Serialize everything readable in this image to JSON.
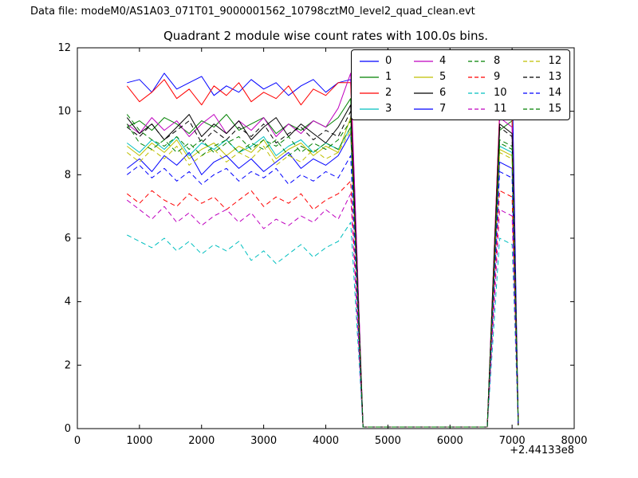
{
  "header": {
    "data_file_label": "Data file: modeM0/AS1A03_071T01_9000001562_10798cztM0_level2_quad_clean.evt"
  },
  "chart_data": {
    "type": "line",
    "title": "Quadrant 2 module wise count rates with 100.0s bins.",
    "xlabel": "",
    "ylabel": "",
    "x_offset_label": "+2.44133e8",
    "xlim": [
      0,
      8000
    ],
    "ylim": [
      0,
      12
    ],
    "x_ticks": [
      0,
      1000,
      2000,
      3000,
      4000,
      5000,
      6000,
      7000,
      8000
    ],
    "y_ticks": [
      0,
      2,
      4,
      6,
      8,
      10,
      12
    ],
    "grid": false,
    "legend": {
      "position": "upper right",
      "columns": 4,
      "order": "column-major"
    },
    "x": [
      800,
      1000,
      1200,
      1400,
      1600,
      1800,
      2000,
      2200,
      2400,
      2600,
      2800,
      3000,
      3200,
      3400,
      3600,
      3800,
      4000,
      4200,
      4400,
      4600,
      4800,
      5000,
      5200,
      5400,
      5600,
      5800,
      6000,
      6200,
      6400,
      6600,
      6800,
      7000,
      7100
    ],
    "series": [
      {
        "name": "0",
        "color": "#0000ff",
        "dash": false,
        "values": [
          10.9,
          11.0,
          10.6,
          11.2,
          10.7,
          10.9,
          11.1,
          10.5,
          10.8,
          10.6,
          11.0,
          10.7,
          10.9,
          10.5,
          10.8,
          11.0,
          10.6,
          10.9,
          11.0,
          0.05,
          0.05,
          0.05,
          0.05,
          0.05,
          0.05,
          0.05,
          0.05,
          0.05,
          0.05,
          0.05,
          9.9,
          11.3,
          0.1
        ]
      },
      {
        "name": "1",
        "color": "#008000",
        "dash": false,
        "values": [
          9.5,
          9.7,
          9.4,
          9.8,
          9.6,
          9.3,
          9.7,
          9.5,
          9.9,
          9.4,
          9.6,
          9.8,
          9.3,
          9.6,
          9.4,
          9.7,
          9.5,
          9.8,
          10.4,
          0.05,
          0.05,
          0.05,
          0.05,
          0.05,
          0.05,
          0.05,
          0.05,
          0.05,
          0.05,
          0.05,
          9.4,
          9.7,
          0.1
        ]
      },
      {
        "name": "2",
        "color": "#ff0000",
        "dash": false,
        "values": [
          10.8,
          10.3,
          10.6,
          11.0,
          10.4,
          10.7,
          10.2,
          10.8,
          10.5,
          10.9,
          10.3,
          10.6,
          10.4,
          10.8,
          10.2,
          10.7,
          10.5,
          10.9,
          10.9,
          0.05,
          0.05,
          0.05,
          0.05,
          0.05,
          0.05,
          0.05,
          0.05,
          0.05,
          0.05,
          0.05,
          10.0,
          9.8,
          0.1
        ]
      },
      {
        "name": "3",
        "color": "#00bfbf",
        "dash": false,
        "values": [
          9.0,
          8.7,
          9.1,
          8.8,
          9.2,
          8.6,
          9.0,
          8.8,
          9.1,
          8.7,
          8.9,
          9.2,
          8.6,
          8.9,
          9.1,
          8.7,
          9.0,
          8.8,
          9.5,
          0.05,
          0.05,
          0.05,
          0.05,
          0.05,
          0.05,
          0.05,
          0.05,
          0.05,
          0.05,
          0.05,
          8.9,
          8.7,
          0.1
        ]
      },
      {
        "name": "4",
        "color": "#bf00bf",
        "dash": false,
        "values": [
          9.6,
          9.3,
          9.8,
          9.4,
          9.7,
          9.2,
          9.6,
          9.9,
          9.3,
          9.7,
          9.4,
          9.8,
          9.2,
          9.6,
          9.3,
          9.7,
          9.5,
          10.1,
          11.2,
          0.05,
          0.05,
          0.05,
          0.05,
          0.05,
          0.05,
          0.05,
          0.05,
          0.05,
          0.05,
          0.05,
          9.8,
          9.5,
          0.1
        ]
      },
      {
        "name": "5",
        "color": "#bfbf00",
        "dash": false,
        "values": [
          8.9,
          8.6,
          9.0,
          8.7,
          9.1,
          8.5,
          8.8,
          9.0,
          8.6,
          8.9,
          8.7,
          9.1,
          8.5,
          8.8,
          9.0,
          8.6,
          8.9,
          8.7,
          9.8,
          0.05,
          0.05,
          0.05,
          0.05,
          0.05,
          0.05,
          0.05,
          0.05,
          0.05,
          0.05,
          0.05,
          8.8,
          8.6,
          0.1
        ]
      },
      {
        "name": "6",
        "color": "#000000",
        "dash": false,
        "values": [
          9.8,
          9.3,
          9.6,
          9.1,
          9.5,
          9.9,
          9.2,
          9.6,
          9.3,
          9.7,
          9.1,
          9.5,
          9.8,
          9.2,
          9.6,
          9.3,
          9.0,
          9.5,
          10.2,
          0.05,
          0.05,
          0.05,
          0.05,
          0.05,
          0.05,
          0.05,
          0.05,
          0.05,
          0.05,
          0.05,
          9.6,
          9.3,
          0.1
        ]
      },
      {
        "name": "7",
        "color": "#0000ff",
        "dash": false,
        "values": [
          8.2,
          8.5,
          8.1,
          8.6,
          8.3,
          8.7,
          8.0,
          8.4,
          8.6,
          8.2,
          8.5,
          8.1,
          8.4,
          8.7,
          8.2,
          8.5,
          8.3,
          8.6,
          9.3,
          0.05,
          0.05,
          0.05,
          0.05,
          0.05,
          0.05,
          0.05,
          0.05,
          0.05,
          0.05,
          0.05,
          8.4,
          8.2,
          0.1
        ]
      },
      {
        "name": "8",
        "color": "#008000",
        "dash": true,
        "values": [
          9.9,
          9.4,
          9.1,
          8.9,
          9.2,
          8.8,
          9.1,
          8.7,
          9.0,
          9.2,
          8.8,
          9.1,
          8.9,
          9.2,
          8.7,
          9.0,
          8.8,
          9.1,
          9.7,
          0.05,
          0.05,
          0.05,
          0.05,
          0.05,
          0.05,
          0.05,
          0.05,
          0.05,
          0.05,
          0.05,
          9.1,
          8.9,
          0.1
        ]
      },
      {
        "name": "9",
        "color": "#ff0000",
        "dash": true,
        "values": [
          7.4,
          7.1,
          7.5,
          7.2,
          7.0,
          7.4,
          7.1,
          7.3,
          6.9,
          7.2,
          7.5,
          7.0,
          7.3,
          7.1,
          7.4,
          6.9,
          7.2,
          7.4,
          7.8,
          0.05,
          0.05,
          0.05,
          0.05,
          0.05,
          0.05,
          0.05,
          0.05,
          0.05,
          0.05,
          0.05,
          7.5,
          7.3,
          0.1
        ]
      },
      {
        "name": "10",
        "color": "#00bfbf",
        "dash": true,
        "values": [
          6.1,
          5.9,
          5.7,
          6.0,
          5.6,
          5.9,
          5.5,
          5.8,
          5.6,
          5.9,
          5.3,
          5.6,
          5.2,
          5.5,
          5.8,
          5.4,
          5.7,
          5.9,
          6.5,
          0.05,
          0.05,
          0.05,
          0.05,
          0.05,
          0.05,
          0.05,
          0.05,
          0.05,
          0.05,
          0.05,
          6.0,
          5.8,
          0.1
        ]
      },
      {
        "name": "11",
        "color": "#bf00bf",
        "dash": true,
        "values": [
          7.2,
          6.9,
          6.6,
          7.0,
          6.5,
          6.8,
          6.4,
          6.7,
          6.9,
          6.5,
          6.8,
          6.3,
          6.6,
          6.4,
          6.7,
          6.5,
          6.9,
          6.6,
          7.4,
          0.05,
          0.05,
          0.05,
          0.05,
          0.05,
          0.05,
          0.05,
          0.05,
          0.05,
          0.05,
          0.05,
          6.9,
          6.7,
          0.1
        ]
      },
      {
        "name": "12",
        "color": "#bfbf00",
        "dash": true,
        "values": [
          8.7,
          8.4,
          8.8,
          8.5,
          8.9,
          8.3,
          8.6,
          8.8,
          8.4,
          8.7,
          8.5,
          8.9,
          8.3,
          8.6,
          8.4,
          8.8,
          8.5,
          8.7,
          9.4,
          0.05,
          0.05,
          0.05,
          0.05,
          0.05,
          0.05,
          0.05,
          0.05,
          0.05,
          0.05,
          0.05,
          8.7,
          8.5,
          0.1
        ]
      },
      {
        "name": "13",
        "color": "#000000",
        "dash": true,
        "values": [
          9.5,
          9.2,
          9.6,
          9.1,
          9.4,
          9.7,
          9.0,
          9.4,
          9.1,
          9.5,
          9.2,
          9.6,
          9.0,
          9.3,
          9.5,
          9.1,
          9.4,
          9.2,
          10.0,
          0.05,
          0.05,
          0.05,
          0.05,
          0.05,
          0.05,
          0.05,
          0.05,
          0.05,
          0.05,
          0.05,
          9.5,
          9.2,
          0.1
        ]
      },
      {
        "name": "14",
        "color": "#0000ff",
        "dash": true,
        "values": [
          8.0,
          8.3,
          7.9,
          8.2,
          7.8,
          8.1,
          7.7,
          8.0,
          8.2,
          7.8,
          8.1,
          7.9,
          8.2,
          7.7,
          8.0,
          7.8,
          8.1,
          7.9,
          8.6,
          0.05,
          0.05,
          0.05,
          0.05,
          0.05,
          0.05,
          0.05,
          0.05,
          0.05,
          0.05,
          0.05,
          8.1,
          7.9,
          0.1
        ]
      },
      {
        "name": "15",
        "color": "#008000",
        "dash": true,
        "values": [
          9.6,
          9.0,
          8.8,
          9.1,
          8.7,
          9.0,
          8.6,
          8.9,
          9.1,
          8.7,
          9.0,
          8.8,
          9.1,
          8.6,
          8.9,
          8.7,
          9.0,
          8.8,
          9.5,
          0.05,
          0.05,
          0.05,
          0.05,
          0.05,
          0.05,
          0.05,
          0.05,
          0.05,
          0.05,
          0.05,
          9.0,
          8.8,
          0.1
        ]
      }
    ]
  }
}
